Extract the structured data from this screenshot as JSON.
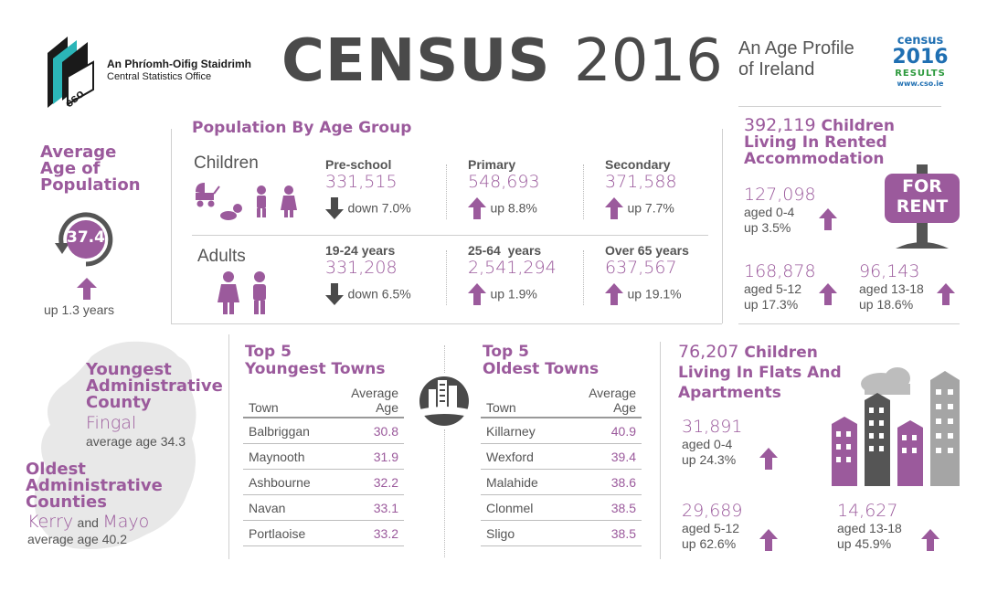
{
  "header": {
    "org_irish": "An Phríomh-Oifig Staidrimh",
    "org_english": "Central Statistics Office",
    "logo_text": "cso",
    "title_bold": "CENSUS",
    "title_year": "2016",
    "subtitle_line1": "An Age Profile",
    "subtitle_line2": "of Ireland",
    "badge_census": "census",
    "badge_year": "2016",
    "badge_results": "RESULTS",
    "badge_url": "www.cso.ie"
  },
  "avg_age": {
    "heading_l1": "Average",
    "heading_l2": "Age of",
    "heading_l3": "Population",
    "value": "37.4",
    "change": "up 1.3 years"
  },
  "population": {
    "title": "Population By Age Group",
    "children_label": "Children",
    "adults_label": "Adults",
    "children": [
      {
        "label": "Pre-school",
        "value": "331,515",
        "change": "down 7.0%"
      },
      {
        "label": "Primary",
        "value": "548,693",
        "change": "up 8.8%"
      },
      {
        "label": "Secondary",
        "value": "371,588",
        "change": "up 7.7%"
      }
    ],
    "adults": [
      {
        "label": "19-24 years",
        "value": "331,208",
        "change": "down 6.5%"
      },
      {
        "label": "25-64  years",
        "value": "2,541,294",
        "change": "up 1.9%"
      },
      {
        "label": "Over 65 years",
        "value": "637,567",
        "change": "up 19.1%"
      }
    ]
  },
  "rented": {
    "count": "392,119",
    "heading_l1": "Children",
    "heading_l2": "Living In Rented",
    "heading_l3": "Accommodation",
    "sign_l1": "FOR",
    "sign_l2": "RENT",
    "items": [
      {
        "value": "127,098",
        "age": "aged 0-4",
        "change": "up 3.5%"
      },
      {
        "value": "168,878",
        "age": "aged 5-12",
        "change": "up 17.3%"
      },
      {
        "value": "96,143",
        "age": "aged 13-18",
        "change": "up 18.6%"
      }
    ]
  },
  "counties": {
    "youngest_l1": "Youngest",
    "youngest_l2": "Administrative",
    "youngest_l3": "County",
    "youngest_name": "Fingal",
    "youngest_avg": "average age 34.3",
    "oldest_l1": "Oldest",
    "oldest_l2": "Administrative",
    "oldest_l3": "Counties",
    "oldest_a": "Kerry",
    "oldest_and": "and",
    "oldest_b": "Mayo",
    "oldest_avg": "average age 40.2"
  },
  "youngest_towns": {
    "title_l1": "Top 5",
    "title_l2": "Youngest Towns",
    "col_town": "Town",
    "col_age_l1": "Average",
    "col_age_l2": "Age",
    "rows": [
      {
        "town": "Balbriggan",
        "age": "30.8"
      },
      {
        "town": "Maynooth",
        "age": "31.9"
      },
      {
        "town": "Ashbourne",
        "age": "32.2"
      },
      {
        "town": "Navan",
        "age": "33.1"
      },
      {
        "town": "Portlaoise",
        "age": "33.2"
      }
    ]
  },
  "oldest_towns": {
    "title_l1": "Top 5",
    "title_l2": "Oldest Towns",
    "col_town": "Town",
    "col_age_l1": "Average",
    "col_age_l2": "Age",
    "rows": [
      {
        "town": "Killarney",
        "age": "40.9"
      },
      {
        "town": "Wexford",
        "age": "39.4"
      },
      {
        "town": "Malahide",
        "age": "38.6"
      },
      {
        "town": "Clonmel",
        "age": "38.5"
      },
      {
        "town": "Sligo",
        "age": "38.5"
      }
    ]
  },
  "flats": {
    "count": "76,207",
    "heading_l1": "Children",
    "heading_l2": "Living In Flats And",
    "heading_l3": "Apartments",
    "items": [
      {
        "value": "31,891",
        "age": "aged 0-4",
        "change": "up 24.3%"
      },
      {
        "value": "29,689",
        "age": "aged 5-12",
        "change": "up 62.6%"
      },
      {
        "value": "14,627",
        "age": "aged 13-18",
        "change": "up 45.9%"
      }
    ]
  },
  "colors": {
    "accent": "#9b5a9c",
    "text": "#555555",
    "title_grey": "#4a4a4a"
  }
}
